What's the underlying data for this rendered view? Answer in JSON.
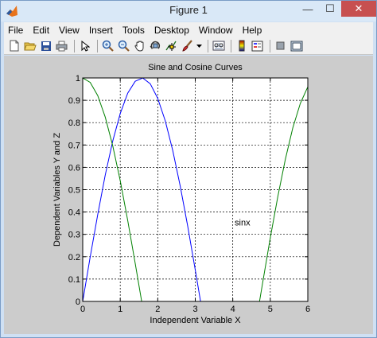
{
  "window": {
    "title": "Figure 1",
    "controls": {
      "minimize": "—",
      "maximize": "☐",
      "close": "✕"
    }
  },
  "menubar": {
    "items": [
      {
        "label": "File"
      },
      {
        "label": "Edit"
      },
      {
        "label": "View"
      },
      {
        "label": "Insert"
      },
      {
        "label": "Tools"
      },
      {
        "label": "Desktop"
      },
      {
        "label": "Window"
      },
      {
        "label": "Help"
      }
    ]
  },
  "toolbar": {
    "icons": [
      "new-figure-icon",
      "open-file-icon",
      "save-icon",
      "print-icon",
      "edit-plot-arrow-icon",
      "zoom-in-icon",
      "zoom-out-icon",
      "pan-hand-icon",
      "rotate-3d-icon",
      "data-cursor-icon",
      "brush-icon",
      "brush-dropdown-icon",
      "link-plot-icon",
      "insert-colorbar-icon",
      "insert-legend-icon",
      "hide-plot-tools-icon",
      "show-plot-tools-icon"
    ]
  },
  "chart_data": {
    "type": "line",
    "title": "Sine and Cosine Curves",
    "xlabel": "Independent Variable X",
    "ylabel": "Dependent Variables Y and Z",
    "xlim": [
      0,
      6
    ],
    "ylim": [
      0,
      1
    ],
    "xticks": [
      "0",
      "1",
      "2",
      "3",
      "4",
      "5",
      "6"
    ],
    "yticks": [
      "0",
      "0.1",
      "0.2",
      "0.3",
      "0.4",
      "0.5",
      "0.6",
      "0.7",
      "0.8",
      "0.9",
      "1"
    ],
    "grid": true,
    "annotation": {
      "text": "sinx",
      "x": 4.05,
      "y": 0.34
    },
    "series": [
      {
        "color": "#0000ff",
        "x": [
          0,
          0.2,
          0.4,
          0.6,
          0.8,
          1.0,
          1.2,
          1.4,
          1.6,
          1.8,
          2.0,
          2.2,
          2.4,
          2.6,
          2.8,
          3.0,
          3.2
        ],
        "y": [
          0,
          0.199,
          0.389,
          0.565,
          0.717,
          0.841,
          0.932,
          0.985,
          0.9996,
          0.974,
          0.909,
          0.808,
          0.675,
          0.516,
          0.335,
          0.141,
          -0.058
        ]
      },
      {
        "color": "#008000",
        "x": [
          0,
          0.2,
          0.4,
          0.6,
          0.8,
          1.0,
          1.2,
          1.4,
          1.6,
          4.6,
          4.8,
          5.0,
          5.2,
          5.4,
          5.6,
          5.8,
          6.0
        ],
        "y": [
          1,
          0.98,
          0.921,
          0.825,
          0.697,
          0.54,
          0.362,
          0.17,
          -0.029,
          -0.112,
          0.087,
          0.284,
          0.469,
          0.635,
          0.776,
          0.886,
          0.96
        ]
      }
    ]
  },
  "colors": {
    "axes_background": "#ffffff",
    "figure_background": "#cccccc"
  }
}
